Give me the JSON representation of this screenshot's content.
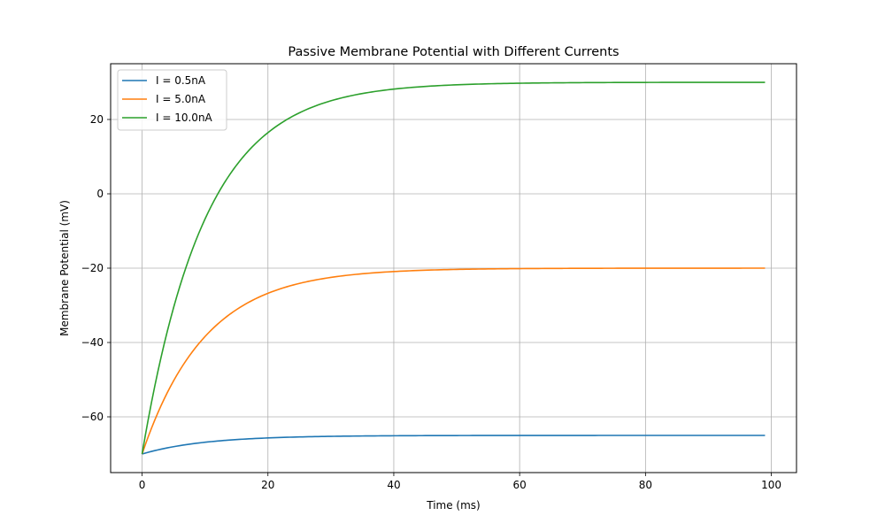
{
  "chart_data": {
    "type": "line",
    "title": "Passive Membrane Potential with Different Currents",
    "xlabel": "Time (ms)",
    "ylabel": "Membrane Potential (mV)",
    "xlim": [
      -5,
      104
    ],
    "ylim": [
      -75,
      35
    ],
    "xticks": [
      0,
      20,
      40,
      60,
      80,
      100
    ],
    "yticks": [
      -60,
      -40,
      -20,
      0,
      20
    ],
    "xtick_labels": [
      "0",
      "20",
      "40",
      "60",
      "80",
      "100"
    ],
    "ytick_labels": [
      "−60",
      "−40",
      "−20",
      "0",
      "20"
    ],
    "grid": true,
    "legend_position": "upper-left",
    "x_range": [
      0,
      99
    ],
    "series": [
      {
        "name": "I = 0.5nA",
        "color": "#1f77b4",
        "v_start": -70,
        "v_inf": -65,
        "tau_ms": 10
      },
      {
        "name": "I = 5.0nA",
        "color": "#ff7f0e",
        "v_start": -70,
        "v_inf": -20,
        "tau_ms": 10
      },
      {
        "name": "I = 10.0nA",
        "color": "#2ca02c",
        "v_start": -70,
        "v_inf": 30,
        "tau_ms": 10
      }
    ]
  }
}
